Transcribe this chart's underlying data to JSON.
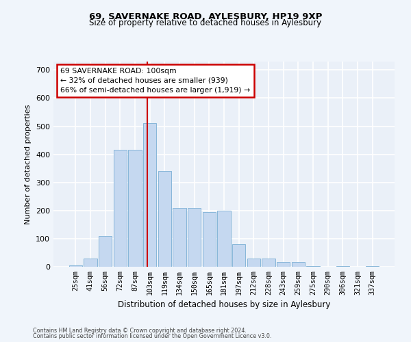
{
  "title1": "69, SAVERNAKE ROAD, AYLESBURY, HP19 9XP",
  "title2": "Size of property relative to detached houses in Aylesbury",
  "xlabel": "Distribution of detached houses by size in Aylesbury",
  "ylabel": "Number of detached properties",
  "categories": [
    "25sqm",
    "41sqm",
    "56sqm",
    "72sqm",
    "87sqm",
    "103sqm",
    "119sqm",
    "134sqm",
    "150sqm",
    "165sqm",
    "181sqm",
    "197sqm",
    "212sqm",
    "228sqm",
    "243sqm",
    "259sqm",
    "275sqm",
    "290sqm",
    "306sqm",
    "321sqm",
    "337sqm"
  ],
  "values": [
    5,
    28,
    110,
    415,
    415,
    510,
    340,
    210,
    210,
    195,
    200,
    80,
    28,
    28,
    18,
    18,
    2,
    0,
    2,
    0,
    2
  ],
  "bar_color": "#c5d8f0",
  "bar_edge_color": "#7aafd4",
  "bar_width": 0.9,
  "red_line_color": "#cc0000",
  "annotation_box_edge": "#cc0000",
  "marker_label_line1": "69 SAVERNAKE ROAD: 100sqm",
  "marker_label_line2": "← 32% of detached houses are smaller (939)",
  "marker_label_line3": "66% of semi-detached houses are larger (1,919) →",
  "ylim": [
    0,
    730
  ],
  "yticks": [
    0,
    100,
    200,
    300,
    400,
    500,
    600,
    700
  ],
  "background_color": "#eaf0f8",
  "grid_color": "#ffffff",
  "fig_bg_color": "#f0f5fb",
  "footer1": "Contains HM Land Registry data © Crown copyright and database right 2024.",
  "footer2": "Contains public sector information licensed under the Open Government Licence v3.0."
}
